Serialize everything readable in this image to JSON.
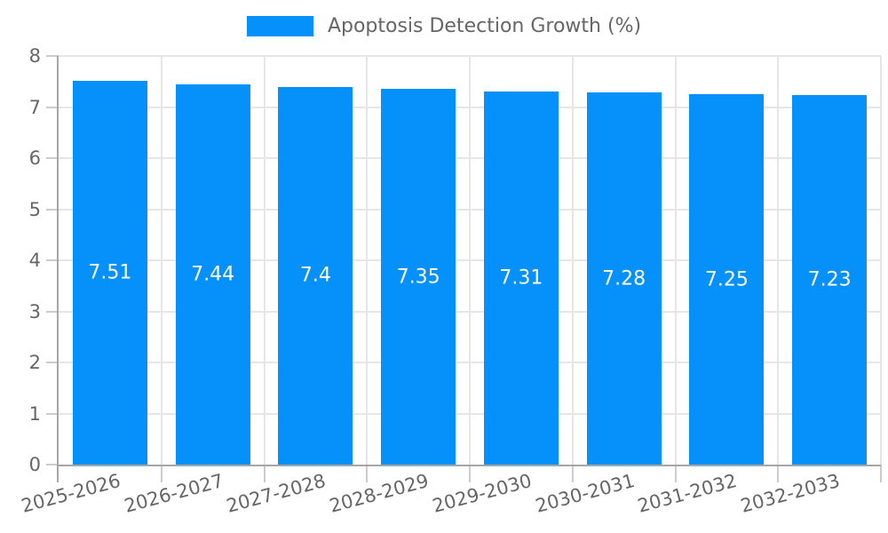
{
  "legend": {
    "label": "Apoptosis Detection Growth (%)"
  },
  "chart_data": {
    "type": "bar",
    "title": "Apoptosis Detection Growth (%)",
    "legend_entries": [
      "Apoptosis Detection Growth (%)"
    ],
    "legend_position": "top",
    "categories": [
      "2025-2026",
      "2026-2027",
      "2027-2028",
      "2028-2029",
      "2029-2030",
      "2030-2031",
      "2031-2032",
      "2032-2033"
    ],
    "values": [
      7.51,
      7.44,
      7.4,
      7.35,
      7.31,
      7.28,
      7.25,
      7.23
    ],
    "value_labels": [
      "7.51",
      "7.44",
      "7.4",
      "7.35",
      "7.31",
      "7.28",
      "7.25",
      "7.23"
    ],
    "xlabel": "",
    "ylabel": "",
    "ylim": [
      0,
      8
    ],
    "yticks": [
      0,
      1,
      2,
      3,
      4,
      5,
      6,
      7,
      8
    ],
    "grid": true,
    "x_label_rotation_deg": -15,
    "colors": {
      "bar": "#0590fa",
      "bar_label_text": "#ffffff",
      "axis_line": "#a6a6a6",
      "gridline": "#e6e6e6",
      "tick": "#cccccc",
      "text": "#666666"
    }
  }
}
